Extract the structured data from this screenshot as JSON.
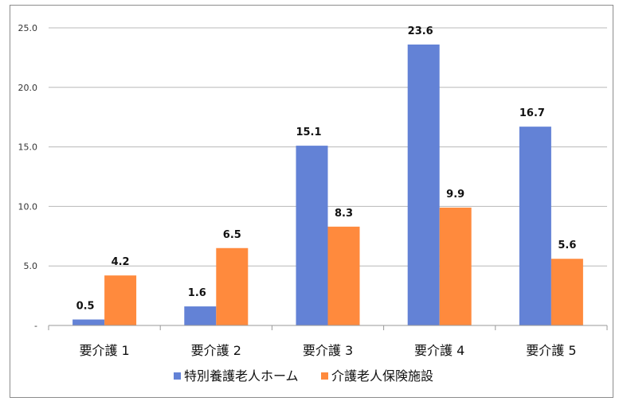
{
  "chart_data": {
    "type": "bar",
    "title": "",
    "xlabel": "",
    "ylabel": "",
    "categories": [
      "要介護 1",
      "要介護 2",
      "要介護 3",
      "要介護 4",
      "要介護 5"
    ],
    "series": [
      {
        "name": "特別養護老人ホーム",
        "color": "#6382d6",
        "values": [
          0.5,
          1.6,
          15.1,
          23.6,
          16.7
        ],
        "labels": [
          "0.5",
          "1.6",
          "15.1",
          "23.6",
          "16.7"
        ]
      },
      {
        "name": "介護老人保険施設",
        "color": "#ff8a3d",
        "values": [
          4.2,
          6.5,
          8.3,
          9.9,
          5.6
        ],
        "labels": [
          "4.2",
          "6.5",
          "8.3",
          "9.9",
          "5.6"
        ]
      }
    ],
    "ylim": [
      0,
      25
    ],
    "yticks": [
      0,
      5,
      10,
      15,
      20,
      25
    ],
    "ytick_labels": [
      "-",
      "5.0",
      "10.0",
      "15.0",
      "20.0",
      "25.0"
    ],
    "grid": true,
    "legend": "bottom-center"
  }
}
